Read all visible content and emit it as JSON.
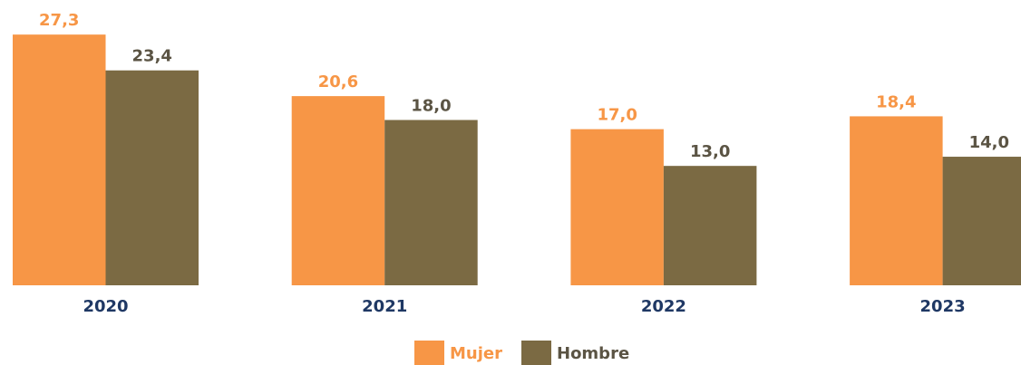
{
  "chart_data": {
    "type": "bar",
    "categories": [
      "2020",
      "2021",
      "2022",
      "2023"
    ],
    "series": [
      {
        "name": "Mujer",
        "color": "#f79646",
        "values": [
          27.3,
          20.6,
          17.0,
          18.4
        ],
        "value_labels": [
          "27,3",
          "20,6",
          "17,0",
          "18,4"
        ]
      },
      {
        "name": "Hombre",
        "color": "#7b6a43",
        "values": [
          23.4,
          18.0,
          13.0,
          14.0
        ],
        "value_labels": [
          "23,4",
          "18,0",
          "13,0",
          "14,0"
        ]
      }
    ]
  }
}
